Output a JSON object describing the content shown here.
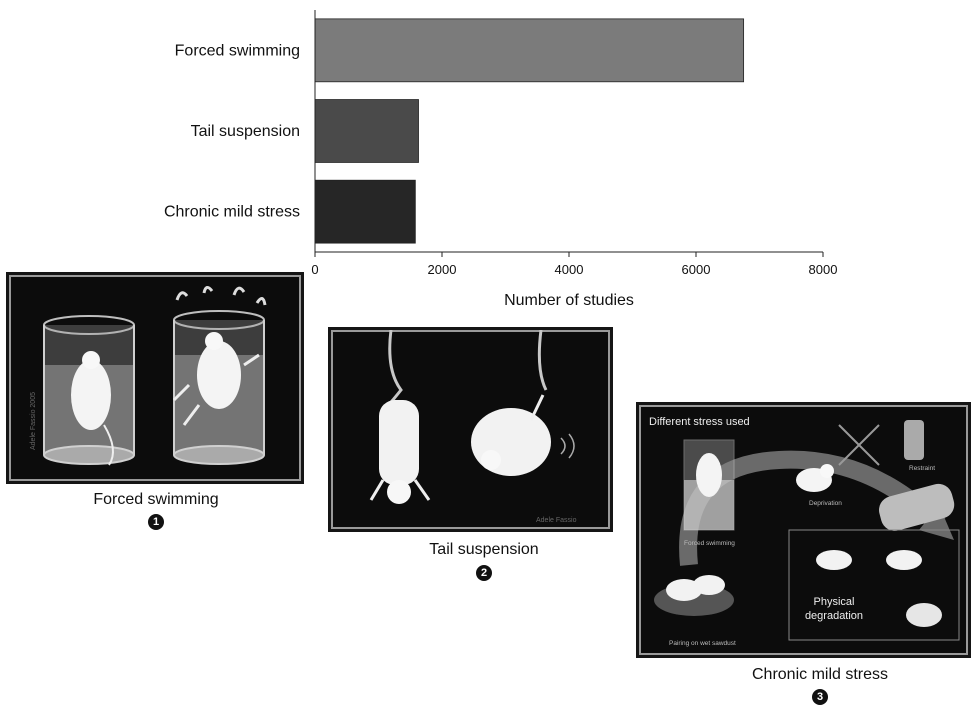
{
  "chart_data": {
    "type": "bar",
    "orientation": "horizontal",
    "categories": [
      "Forced swimming",
      "Tail suspension",
      "Chronic mild stress"
    ],
    "values": [
      6750,
      1630,
      1580
    ],
    "xlabel": "Number of studies",
    "ylabel": "",
    "xlim": [
      0,
      8000
    ],
    "xticks": [
      0,
      2000,
      4000,
      6000,
      8000
    ],
    "colors": [
      "#7b7b7b",
      "#4a4a4a",
      "#262626"
    ],
    "grid": false,
    "legend": "none"
  },
  "panels": [
    {
      "caption": "Forced swimming",
      "number": "1",
      "signature": "Adele Fassio 2005"
    },
    {
      "caption": "Tail suspension",
      "number": "2",
      "signature": "Adele Fassio"
    },
    {
      "caption": "Chronic mild stress",
      "number": "3",
      "header": "Different stress used",
      "labels": {
        "forced": "Forced swimming",
        "deprivation": "Deprivation",
        "restraint": "Restraint",
        "pairing": "Pairing on wet sawdust",
        "physical": "Physical",
        "degradation": "degradation"
      }
    }
  ]
}
